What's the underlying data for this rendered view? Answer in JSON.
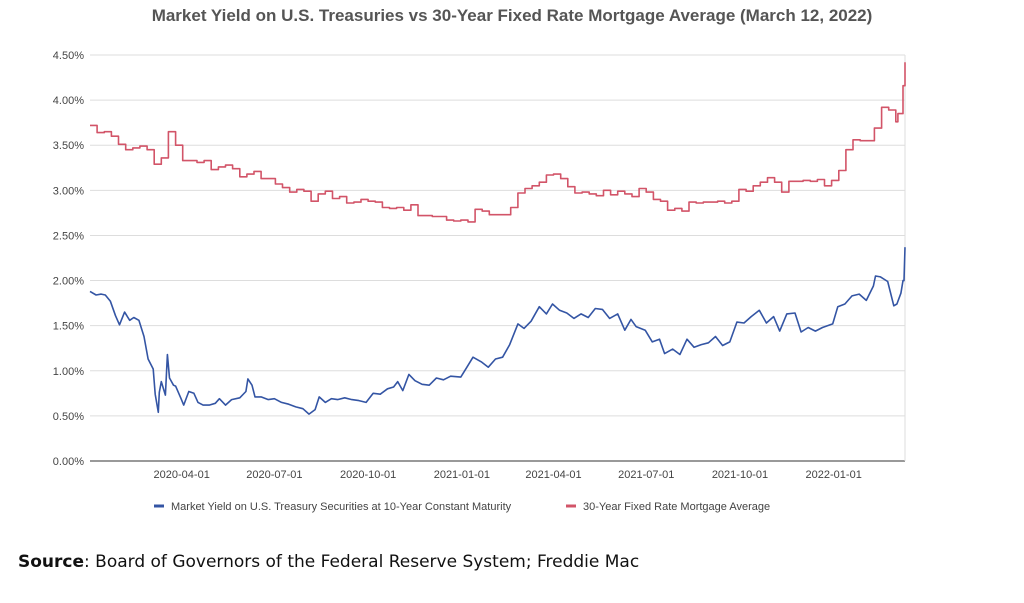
{
  "chart_data": {
    "type": "line",
    "title": "Market Yield on U.S. Treasuries vs 30-Year Fixed Rate Mortgage Average (March 12, 2022)",
    "xlabel": "",
    "ylabel": "",
    "xlim": [
      "2020-01-02",
      "2022-03-12"
    ],
    "ylim": [
      0,
      4.5
    ],
    "y_ticks": [
      "0.00%",
      "0.50%",
      "1.00%",
      "1.50%",
      "2.00%",
      "2.50%",
      "3.00%",
      "3.50%",
      "4.00%",
      "4.50%"
    ],
    "y_tick_values": [
      0,
      0.5,
      1.0,
      1.5,
      2.0,
      2.5,
      3.0,
      3.5,
      4.0,
      4.5
    ],
    "x_ticks": [
      "2020-04-01",
      "2020-07-01",
      "2020-10-01",
      "2021-01-01",
      "2021-04-01",
      "2021-07-01",
      "2021-10-01",
      "2022-01-01"
    ],
    "grid": true,
    "legend": "bottom",
    "series": [
      {
        "name": "Market Yield on U.S. Treasury Securities at 10-Year Constant Maturity",
        "color": "#3455a4",
        "step": false,
        "points": [
          [
            "2020-01-02",
            1.88
          ],
          [
            "2020-01-08",
            1.84
          ],
          [
            "2020-01-13",
            1.85
          ],
          [
            "2020-01-17",
            1.84
          ],
          [
            "2020-01-22",
            1.77
          ],
          [
            "2020-01-27",
            1.61
          ],
          [
            "2020-01-31",
            1.51
          ],
          [
            "2020-02-05",
            1.65
          ],
          [
            "2020-02-10",
            1.56
          ],
          [
            "2020-02-14",
            1.59
          ],
          [
            "2020-02-19",
            1.56
          ],
          [
            "2020-02-24",
            1.38
          ],
          [
            "2020-02-28",
            1.13
          ],
          [
            "2020-03-04",
            1.02
          ],
          [
            "2020-03-06",
            0.74
          ],
          [
            "2020-03-09",
            0.54
          ],
          [
            "2020-03-10",
            0.76
          ],
          [
            "2020-03-12",
            0.88
          ],
          [
            "2020-03-16",
            0.73
          ],
          [
            "2020-03-18",
            1.18
          ],
          [
            "2020-03-20",
            0.92
          ],
          [
            "2020-03-24",
            0.84
          ],
          [
            "2020-03-26",
            0.83
          ],
          [
            "2020-03-31",
            0.7
          ],
          [
            "2020-04-03",
            0.62
          ],
          [
            "2020-04-08",
            0.77
          ],
          [
            "2020-04-13",
            0.75
          ],
          [
            "2020-04-17",
            0.65
          ],
          [
            "2020-04-22",
            0.62
          ],
          [
            "2020-04-28",
            0.62
          ],
          [
            "2020-05-04",
            0.64
          ],
          [
            "2020-05-08",
            0.69
          ],
          [
            "2020-05-14",
            0.62
          ],
          [
            "2020-05-20",
            0.68
          ],
          [
            "2020-05-28",
            0.7
          ],
          [
            "2020-06-03",
            0.77
          ],
          [
            "2020-06-05",
            0.91
          ],
          [
            "2020-06-09",
            0.84
          ],
          [
            "2020-06-12",
            0.71
          ],
          [
            "2020-06-18",
            0.71
          ],
          [
            "2020-06-25",
            0.68
          ],
          [
            "2020-07-01",
            0.69
          ],
          [
            "2020-07-08",
            0.65
          ],
          [
            "2020-07-15",
            0.63
          ],
          [
            "2020-07-22",
            0.6
          ],
          [
            "2020-07-29",
            0.58
          ],
          [
            "2020-08-04",
            0.52
          ],
          [
            "2020-08-10",
            0.57
          ],
          [
            "2020-08-14",
            0.71
          ],
          [
            "2020-08-20",
            0.65
          ],
          [
            "2020-08-26",
            0.69
          ],
          [
            "2020-09-01",
            0.68
          ],
          [
            "2020-09-08",
            0.7
          ],
          [
            "2020-09-15",
            0.68
          ],
          [
            "2020-09-22",
            0.67
          ],
          [
            "2020-09-29",
            0.65
          ],
          [
            "2020-10-06",
            0.75
          ],
          [
            "2020-10-13",
            0.74
          ],
          [
            "2020-10-20",
            0.8
          ],
          [
            "2020-10-26",
            0.82
          ],
          [
            "2020-10-30",
            0.88
          ],
          [
            "2020-11-04",
            0.78
          ],
          [
            "2020-11-10",
            0.96
          ],
          [
            "2020-11-16",
            0.89
          ],
          [
            "2020-11-23",
            0.85
          ],
          [
            "2020-11-30",
            0.84
          ],
          [
            "2020-12-07",
            0.92
          ],
          [
            "2020-12-14",
            0.9
          ],
          [
            "2020-12-21",
            0.94
          ],
          [
            "2020-12-31",
            0.93
          ],
          [
            "2021-01-06",
            1.04
          ],
          [
            "2021-01-12",
            1.15
          ],
          [
            "2021-01-20",
            1.1
          ],
          [
            "2021-01-27",
            1.04
          ],
          [
            "2021-02-03",
            1.13
          ],
          [
            "2021-02-10",
            1.15
          ],
          [
            "2021-02-17",
            1.29
          ],
          [
            "2021-02-25",
            1.52
          ],
          [
            "2021-03-03",
            1.47
          ],
          [
            "2021-03-10",
            1.55
          ],
          [
            "2021-03-18",
            1.71
          ],
          [
            "2021-03-25",
            1.63
          ],
          [
            "2021-03-31",
            1.74
          ],
          [
            "2021-04-07",
            1.67
          ],
          [
            "2021-04-14",
            1.64
          ],
          [
            "2021-04-21",
            1.58
          ],
          [
            "2021-04-28",
            1.63
          ],
          [
            "2021-05-05",
            1.59
          ],
          [
            "2021-05-12",
            1.69
          ],
          [
            "2021-05-19",
            1.68
          ],
          [
            "2021-05-26",
            1.58
          ],
          [
            "2021-06-03",
            1.63
          ],
          [
            "2021-06-10",
            1.45
          ],
          [
            "2021-06-16",
            1.57
          ],
          [
            "2021-06-21",
            1.49
          ],
          [
            "2021-06-30",
            1.45
          ],
          [
            "2021-07-07",
            1.32
          ],
          [
            "2021-07-14",
            1.35
          ],
          [
            "2021-07-19",
            1.19
          ],
          [
            "2021-07-27",
            1.24
          ],
          [
            "2021-08-03",
            1.18
          ],
          [
            "2021-08-10",
            1.35
          ],
          [
            "2021-08-17",
            1.26
          ],
          [
            "2021-08-24",
            1.29
          ],
          [
            "2021-08-31",
            1.31
          ],
          [
            "2021-09-07",
            1.38
          ],
          [
            "2021-09-14",
            1.28
          ],
          [
            "2021-09-21",
            1.32
          ],
          [
            "2021-09-28",
            1.54
          ],
          [
            "2021-10-05",
            1.53
          ],
          [
            "2021-10-12",
            1.6
          ],
          [
            "2021-10-20",
            1.67
          ],
          [
            "2021-10-27",
            1.53
          ],
          [
            "2021-11-03",
            1.6
          ],
          [
            "2021-11-09",
            1.44
          ],
          [
            "2021-11-16",
            1.63
          ],
          [
            "2021-11-24",
            1.64
          ],
          [
            "2021-11-30",
            1.43
          ],
          [
            "2021-12-07",
            1.48
          ],
          [
            "2021-12-14",
            1.44
          ],
          [
            "2021-12-21",
            1.48
          ],
          [
            "2021-12-31",
            1.52
          ],
          [
            "2022-01-05",
            1.71
          ],
          [
            "2022-01-12",
            1.74
          ],
          [
            "2022-01-19",
            1.83
          ],
          [
            "2022-01-26",
            1.85
          ],
          [
            "2022-02-02",
            1.78
          ],
          [
            "2022-02-09",
            1.94
          ],
          [
            "2022-02-11",
            2.05
          ],
          [
            "2022-02-16",
            2.04
          ],
          [
            "2022-02-23",
            1.99
          ],
          [
            "2022-03-01",
            1.72
          ],
          [
            "2022-03-04",
            1.74
          ],
          [
            "2022-03-08",
            1.86
          ],
          [
            "2022-03-10",
            2.0
          ],
          [
            "2022-03-11",
            2.0
          ],
          [
            "2022-03-12",
            2.37
          ]
        ]
      },
      {
        "name": "30-Year Fixed Rate Mortgage Average",
        "color": "#d25468",
        "step": true,
        "points": [
          [
            "2020-01-02",
            3.72
          ],
          [
            "2020-01-09",
            3.64
          ],
          [
            "2020-01-16",
            3.65
          ],
          [
            "2020-01-23",
            3.6
          ],
          [
            "2020-01-30",
            3.51
          ],
          [
            "2020-02-06",
            3.45
          ],
          [
            "2020-02-13",
            3.47
          ],
          [
            "2020-02-20",
            3.49
          ],
          [
            "2020-02-27",
            3.45
          ],
          [
            "2020-03-05",
            3.29
          ],
          [
            "2020-03-12",
            3.36
          ],
          [
            "2020-03-19",
            3.65
          ],
          [
            "2020-03-26",
            3.5
          ],
          [
            "2020-04-02",
            3.33
          ],
          [
            "2020-04-09",
            3.33
          ],
          [
            "2020-04-16",
            3.31
          ],
          [
            "2020-04-23",
            3.33
          ],
          [
            "2020-04-30",
            3.23
          ],
          [
            "2020-05-07",
            3.26
          ],
          [
            "2020-05-14",
            3.28
          ],
          [
            "2020-05-21",
            3.24
          ],
          [
            "2020-05-28",
            3.15
          ],
          [
            "2020-06-04",
            3.18
          ],
          [
            "2020-06-11",
            3.21
          ],
          [
            "2020-06-18",
            3.13
          ],
          [
            "2020-06-25",
            3.13
          ],
          [
            "2020-07-02",
            3.07
          ],
          [
            "2020-07-09",
            3.03
          ],
          [
            "2020-07-16",
            2.98
          ],
          [
            "2020-07-23",
            3.01
          ],
          [
            "2020-07-30",
            2.99
          ],
          [
            "2020-08-06",
            2.88
          ],
          [
            "2020-08-13",
            2.96
          ],
          [
            "2020-08-20",
            2.99
          ],
          [
            "2020-08-27",
            2.91
          ],
          [
            "2020-09-03",
            2.93
          ],
          [
            "2020-09-10",
            2.86
          ],
          [
            "2020-09-17",
            2.87
          ],
          [
            "2020-09-24",
            2.9
          ],
          [
            "2020-10-01",
            2.88
          ],
          [
            "2020-10-08",
            2.87
          ],
          [
            "2020-10-15",
            2.81
          ],
          [
            "2020-10-22",
            2.8
          ],
          [
            "2020-10-29",
            2.81
          ],
          [
            "2020-11-05",
            2.78
          ],
          [
            "2020-11-12",
            2.84
          ],
          [
            "2020-11-19",
            2.72
          ],
          [
            "2020-11-26",
            2.72
          ],
          [
            "2020-12-03",
            2.71
          ],
          [
            "2020-12-10",
            2.71
          ],
          [
            "2020-12-17",
            2.67
          ],
          [
            "2020-12-24",
            2.66
          ],
          [
            "2020-12-31",
            2.67
          ],
          [
            "2021-01-07",
            2.65
          ],
          [
            "2021-01-14",
            2.79
          ],
          [
            "2021-01-21",
            2.77
          ],
          [
            "2021-01-28",
            2.73
          ],
          [
            "2021-02-04",
            2.73
          ],
          [
            "2021-02-11",
            2.73
          ],
          [
            "2021-02-18",
            2.81
          ],
          [
            "2021-02-25",
            2.97
          ],
          [
            "2021-03-04",
            3.02
          ],
          [
            "2021-03-11",
            3.05
          ],
          [
            "2021-03-18",
            3.09
          ],
          [
            "2021-03-25",
            3.17
          ],
          [
            "2021-04-01",
            3.18
          ],
          [
            "2021-04-08",
            3.13
          ],
          [
            "2021-04-15",
            3.04
          ],
          [
            "2021-04-22",
            2.97
          ],
          [
            "2021-04-29",
            2.98
          ],
          [
            "2021-05-06",
            2.96
          ],
          [
            "2021-05-13",
            2.94
          ],
          [
            "2021-05-20",
            3.0
          ],
          [
            "2021-05-27",
            2.95
          ],
          [
            "2021-06-03",
            2.99
          ],
          [
            "2021-06-10",
            2.96
          ],
          [
            "2021-06-17",
            2.93
          ],
          [
            "2021-06-24",
            3.02
          ],
          [
            "2021-07-01",
            2.98
          ],
          [
            "2021-07-08",
            2.9
          ],
          [
            "2021-07-15",
            2.88
          ],
          [
            "2021-07-22",
            2.78
          ],
          [
            "2021-07-29",
            2.8
          ],
          [
            "2021-08-05",
            2.77
          ],
          [
            "2021-08-12",
            2.87
          ],
          [
            "2021-08-19",
            2.86
          ],
          [
            "2021-08-26",
            2.87
          ],
          [
            "2021-09-02",
            2.87
          ],
          [
            "2021-09-09",
            2.88
          ],
          [
            "2021-09-16",
            2.86
          ],
          [
            "2021-09-23",
            2.88
          ],
          [
            "2021-09-30",
            3.01
          ],
          [
            "2021-10-07",
            2.99
          ],
          [
            "2021-10-14",
            3.05
          ],
          [
            "2021-10-21",
            3.09
          ],
          [
            "2021-10-28",
            3.14
          ],
          [
            "2021-11-04",
            3.09
          ],
          [
            "2021-11-11",
            2.98
          ],
          [
            "2021-11-18",
            3.1
          ],
          [
            "2021-11-25",
            3.1
          ],
          [
            "2021-12-02",
            3.11
          ],
          [
            "2021-12-09",
            3.1
          ],
          [
            "2021-12-16",
            3.12
          ],
          [
            "2021-12-23",
            3.05
          ],
          [
            "2021-12-30",
            3.11
          ],
          [
            "2022-01-06",
            3.22
          ],
          [
            "2022-01-13",
            3.45
          ],
          [
            "2022-01-20",
            3.56
          ],
          [
            "2022-01-27",
            3.55
          ],
          [
            "2022-02-03",
            3.55
          ],
          [
            "2022-02-10",
            3.69
          ],
          [
            "2022-02-17",
            3.92
          ],
          [
            "2022-02-24",
            3.89
          ],
          [
            "2022-03-03",
            3.76
          ],
          [
            "2022-03-05",
            3.85
          ],
          [
            "2022-03-10",
            4.16
          ],
          [
            "2022-03-12",
            4.42
          ]
        ]
      }
    ]
  },
  "source": {
    "label": "Source",
    "text": ": Board of Governors of the Federal Reserve System; Freddie Mac"
  }
}
